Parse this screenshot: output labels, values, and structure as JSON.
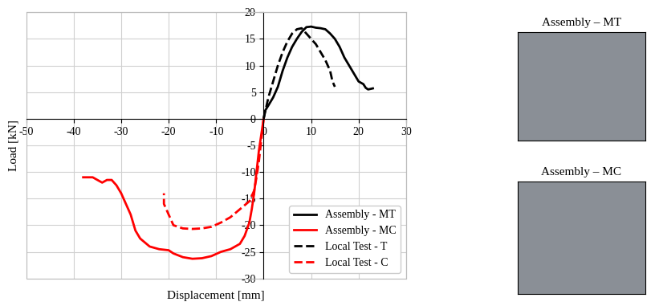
{
  "chart_data": {
    "type": "line",
    "x_label": "Displacement [mm]",
    "y_label": "Load [kN]",
    "xlim": [
      -50,
      30
    ],
    "xticks": [
      -50,
      -40,
      -30,
      -20,
      -10,
      0,
      10,
      20,
      30
    ],
    "ylim": [
      -30,
      20
    ],
    "yticks": [
      -30,
      -25,
      -20,
      -15,
      -10,
      -5,
      0,
      5,
      10,
      15,
      20
    ],
    "grid": true,
    "legend": "lower right",
    "series": [
      {
        "name": "Assembly - MT",
        "color": "#000000",
        "line_style": "solid",
        "x": [
          0,
          0.3,
          1,
          2,
          3,
          4,
          5,
          6,
          7,
          8,
          9,
          10,
          11,
          12,
          13,
          14,
          15,
          16,
          17,
          18,
          19,
          20,
          21,
          21.5,
          22,
          23
        ],
        "values": [
          0,
          1.5,
          2.5,
          4,
          6,
          9,
          11.5,
          13.5,
          15,
          16.3,
          17.2,
          17.3,
          17.1,
          17,
          16.8,
          16,
          15,
          13.5,
          11.5,
          10,
          8.5,
          7,
          6.5,
          5.8,
          5.5,
          5.7
        ]
      },
      {
        "name": "Assembly - MC",
        "color": "#ff0000",
        "line_style": "solid",
        "x": [
          0,
          -0.5,
          -1,
          -1.5,
          -2,
          -2.5,
          -3,
          -4,
          -5,
          -7,
          -9,
          -11,
          -13,
          -15,
          -17,
          -19,
          -20,
          -22,
          -24,
          -26,
          -27,
          -28,
          -29,
          -30,
          -31,
          -32,
          -33,
          -34,
          -35,
          -36,
          -37,
          -38
        ],
        "values": [
          0,
          -3,
          -6,
          -10,
          -14,
          -17,
          -19.5,
          -22,
          -23.5,
          -24.5,
          -25,
          -25.8,
          -26.2,
          -26.3,
          -26,
          -25.3,
          -24.7,
          -24.5,
          -24,
          -22.5,
          -21,
          -18,
          -16,
          -14,
          -12.5,
          -11.5,
          -11.5,
          -12,
          -11.5,
          -11,
          -11,
          -11
        ]
      },
      {
        "name": "Local Test - T",
        "color": "#000000",
        "line_style": "dashed",
        "x": [
          0,
          0.5,
          1,
          2,
          3,
          4,
          5,
          6,
          7,
          8,
          9,
          10,
          11,
          12,
          13,
          14,
          14.5,
          15
        ],
        "values": [
          0,
          2,
          4,
          7,
          10,
          12.5,
          14.5,
          16,
          16.8,
          17,
          16,
          15,
          14,
          12.5,
          11,
          9,
          7,
          6
        ]
      },
      {
        "name": "Local Test - C",
        "color": "#ff0000",
        "line_style": "dashed",
        "x": [
          0,
          -0.5,
          -1,
          -1.5,
          -2,
          -3,
          -5,
          -7,
          -9,
          -11,
          -13,
          -15,
          -17,
          -19,
          -20,
          -21,
          -21
        ],
        "values": [
          0,
          -4,
          -8,
          -11,
          -13.5,
          -15.5,
          -17,
          -18.5,
          -19.5,
          -20.3,
          -20.6,
          -20.7,
          -20.6,
          -20,
          -18,
          -16,
          -14
        ]
      }
    ]
  },
  "photos": [
    {
      "title": "Assembly – MT"
    },
    {
      "title": "Assembly – MC"
    }
  ]
}
